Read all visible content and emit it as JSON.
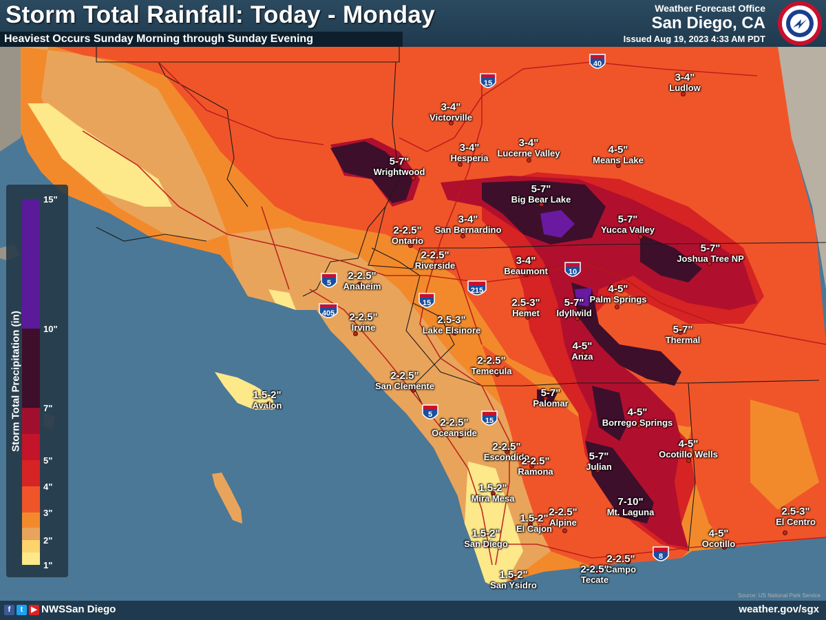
{
  "header": {
    "title": "Storm Total Rainfall: Today - Monday",
    "subtitle": "Heaviest Occurs Sunday Morning through Sunday Evening",
    "office_line": "Weather Forecast Office",
    "office_city": "San Diego, CA",
    "issued": "Issued Aug 19, 2023 4:33 AM PDT",
    "logo_text": "NATIONAL WEATHER SERVICE"
  },
  "legend": {
    "title": "Storm Total Precipitation (in)",
    "ticks": [
      "15\"",
      "10\"",
      "7\"",
      "5\"",
      "4\"",
      "3\"",
      "2\"",
      "1\""
    ],
    "colors": {
      "1_2": "#fde88a",
      "2_lower": "#e9a45b",
      "2_3": "#f28a2c",
      "3_4": "#f0552a",
      "4_5": "#d62323",
      "5_7": "#b0102e",
      "7_10": "#3e0f2b",
      "10_15": "#6a1aa0"
    }
  },
  "locations": [
    {
      "amt": "3-4\"",
      "name": "Ludlow"
    },
    {
      "amt": "3-4\"",
      "name": "Victorville"
    },
    {
      "amt": "3-4\"",
      "name": "Hesperia"
    },
    {
      "amt": "3-4\"",
      "name": "Lucerne Valley"
    },
    {
      "amt": "4-5\"",
      "name": "Means Lake"
    },
    {
      "amt": "5-7\"",
      "name": "Wrightwood"
    },
    {
      "amt": "5-7\"",
      "name": "Big Bear Lake"
    },
    {
      "amt": "2-2.5\"",
      "name": "Ontario"
    },
    {
      "amt": "3-4\"",
      "name": "San Bernardino"
    },
    {
      "amt": "5-7\"",
      "name": "Yucca Valley"
    },
    {
      "amt": "5-7\"",
      "name": "Joshua Tree NP"
    },
    {
      "amt": "2-2.5\"",
      "name": "Riverside"
    },
    {
      "amt": "3-4\"",
      "name": "Beaumont"
    },
    {
      "amt": "2-2.5\"",
      "name": "Anaheim"
    },
    {
      "amt": "4-5\"",
      "name": "Palm Springs"
    },
    {
      "amt": "2.5-3\"",
      "name": "Hemet"
    },
    {
      "amt": "5-7\"",
      "name": "Idyllwild"
    },
    {
      "amt": "2-2.5\"",
      "name": "Irvine"
    },
    {
      "amt": "2.5-3\"",
      "name": "Lake Elsinore"
    },
    {
      "amt": "5-7\"",
      "name": "Thermal"
    },
    {
      "amt": "4-5\"",
      "name": "Anza"
    },
    {
      "amt": "2-2.5\"",
      "name": "Temecula"
    },
    {
      "amt": "2-2.5\"",
      "name": "San Clemente"
    },
    {
      "amt": "1.5-2\"",
      "name": "Avalon"
    },
    {
      "amt": "5-7\"",
      "name": "Palomar"
    },
    {
      "amt": "4-5\"",
      "name": "Borrego Springs"
    },
    {
      "amt": "2-2.5\"",
      "name": "Oceanside"
    },
    {
      "amt": "2-2.5\"",
      "name": "Escondido"
    },
    {
      "amt": "2-2.5\"",
      "name": "Ramona"
    },
    {
      "amt": "4-5\"",
      "name": "Ocotillo Wells"
    },
    {
      "amt": "5-7\"",
      "name": "Julian"
    },
    {
      "amt": "1.5-2\"",
      "name": "Mira Mesa"
    },
    {
      "amt": "1.5-2\"",
      "name": "El Cajon"
    },
    {
      "amt": "2-2.5\"",
      "name": "Alpine"
    },
    {
      "amt": "7-10\"",
      "name": "Mt. Laguna"
    },
    {
      "amt": "2.5-3\"",
      "name": "El Centro"
    },
    {
      "amt": "1.5-2\"",
      "name": "San Diego"
    },
    {
      "amt": "4-5\"",
      "name": "Ocotillo"
    },
    {
      "amt": "2-2.5\"",
      "name": "Campo"
    },
    {
      "amt": "2-2.5\"",
      "name": "Tecate"
    },
    {
      "amt": "1.5-2\"",
      "name": "San Ysidro"
    }
  ],
  "highways": [
    "40",
    "15",
    "5",
    "405",
    "15",
    "215",
    "10",
    "5",
    "15",
    "8"
  ],
  "footer": {
    "handle": "NWSSan Diego",
    "site": "weather.gov/sgx",
    "credit": "Source: US National Park Service"
  },
  "social_icons": [
    "facebook-icon",
    "twitter-icon",
    "youtube-icon"
  ]
}
